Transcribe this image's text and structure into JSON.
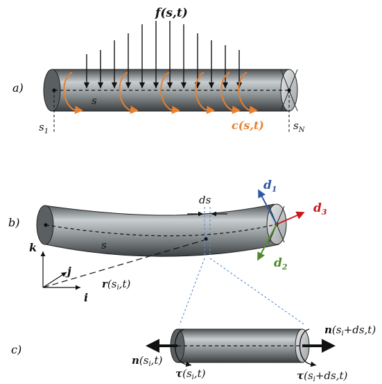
{
  "panels": {
    "a": {
      "label": "a)",
      "force": "f(s,t)",
      "couple": "c(s,t)",
      "s": "s",
      "s1_base": "s",
      "s1_sub": "1",
      "sN_base": "s",
      "sN_sub": "N"
    },
    "b": {
      "label": "b)",
      "ds": "ds",
      "d1_base": "d",
      "d1_sub": "1",
      "d2_base": "d",
      "d2_sub": "2",
      "d3_base": "d",
      "d3_sub": "3",
      "s": "s",
      "k": "k",
      "j": "j",
      "i": "i",
      "r": "r",
      "r_args": "(s",
      "r_sub": "i",
      "r_tail": ",t)"
    },
    "c": {
      "label": "c)",
      "n_left_base": "n",
      "n_left_args": "(s",
      "n_left_sub": "i",
      "n_left_tail": ",t)",
      "n_right_base": "n",
      "n_right_args": "(s",
      "n_right_sub": "i",
      "n_right_tail": "+ds,t)",
      "tau_left_base": "τ",
      "tau_left_args": "(s",
      "tau_left_sub": "i",
      "tau_left_tail": ",t)",
      "tau_right_base": "τ",
      "tau_right_args": "(s",
      "tau_right_sub": "i",
      "tau_right_tail": "+ds,t)"
    }
  },
  "colors": {
    "rod_dark": "#3f4446",
    "rod_light": "#c9ced0",
    "orange": "#e8802e",
    "red": "#c8191e",
    "blue": "#2f5aa3",
    "green": "#4f8a2a",
    "dashed_blue": "#5b8ecf",
    "ink": "#111111"
  }
}
